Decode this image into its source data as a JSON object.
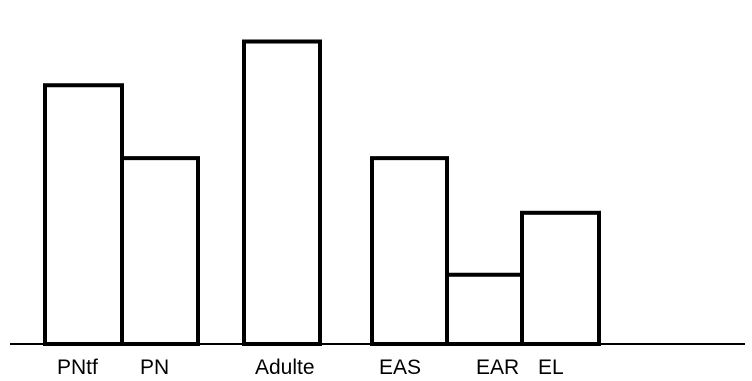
{
  "chart_data": {
    "type": "bar",
    "title": "",
    "xlabel": "",
    "ylabel": "",
    "categories": [
      "PNtf",
      "PN",
      "Adulte",
      "EAS",
      "EAR",
      "EL"
    ],
    "values": [
      7.1,
      5.1,
      8.3,
      5.1,
      1.9,
      3.6
    ],
    "ylim": [
      0,
      9
    ],
    "grid": false,
    "legend": "none",
    "colors": {
      "bar_fill": "#ffffff",
      "bar_stroke": "#000000",
      "axis": "#000000",
      "text": "#000000"
    }
  }
}
